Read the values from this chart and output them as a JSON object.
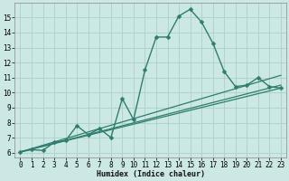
{
  "title": "",
  "xlabel": "Humidex (Indice chaleur)",
  "ylabel": "",
  "background_color": "#cce8e4",
  "grid_color": "#aad0cb",
  "line_color": "#2e7d6e",
  "xlim": [
    -0.5,
    23.5
  ],
  "ylim": [
    5.7,
    16.0
  ],
  "xticks": [
    0,
    1,
    2,
    3,
    4,
    5,
    6,
    7,
    8,
    9,
    10,
    11,
    12,
    13,
    14,
    15,
    16,
    17,
    18,
    19,
    20,
    21,
    22,
    23
  ],
  "yticks": [
    6,
    7,
    8,
    9,
    10,
    11,
    12,
    13,
    14,
    15
  ],
  "series": [
    {
      "x": [
        0,
        1,
        2,
        3,
        4,
        5,
        6,
        7,
        8,
        9,
        10,
        11,
        12,
        13,
        14,
        15,
        16,
        17,
        18,
        19,
        20,
        21,
        22,
        23
      ],
      "y": [
        6.05,
        6.2,
        6.15,
        6.7,
        6.8,
        7.8,
        7.2,
        7.6,
        7.0,
        9.6,
        8.2,
        11.5,
        13.7,
        13.7,
        15.1,
        15.55,
        14.7,
        13.3,
        11.4,
        10.4,
        10.5,
        11.0,
        10.4,
        10.3
      ],
      "marker": "D",
      "markersize": 2.5,
      "linewidth": 1.0
    },
    {
      "x": [
        0,
        23
      ],
      "y": [
        6.05,
        10.3
      ],
      "marker": null,
      "linewidth": 0.9
    },
    {
      "x": [
        0,
        23
      ],
      "y": [
        6.05,
        10.5
      ],
      "marker": null,
      "linewidth": 0.9
    },
    {
      "x": [
        0,
        23
      ],
      "y": [
        6.05,
        11.15
      ],
      "marker": null,
      "linewidth": 0.9
    }
  ],
  "axis_fontsize": 6,
  "tick_fontsize": 5.5
}
